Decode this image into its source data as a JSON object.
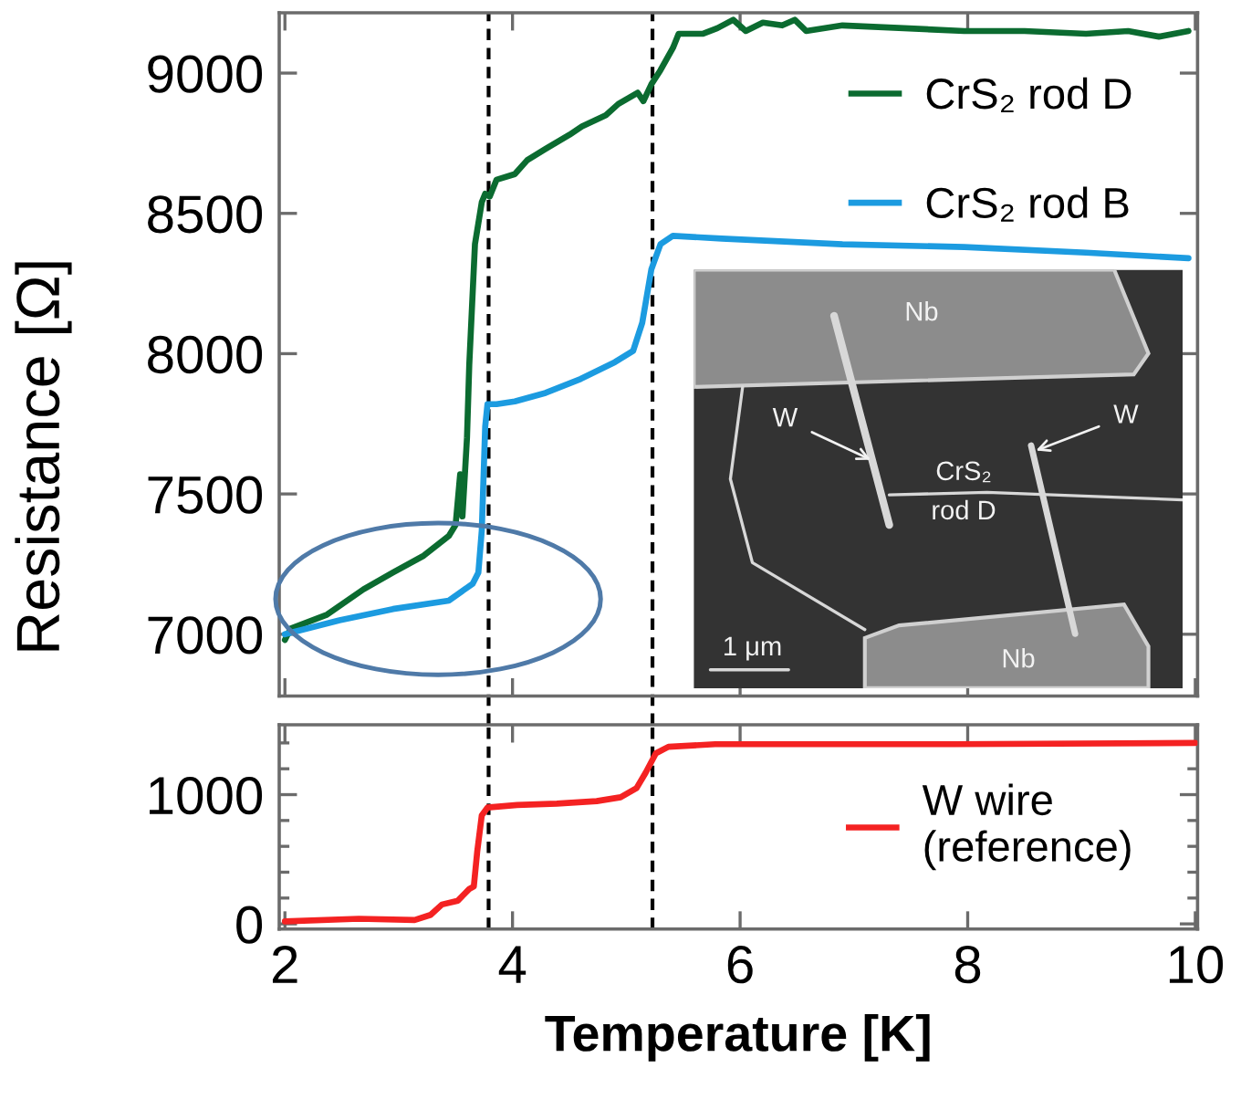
{
  "chart_data": [
    {
      "type": "line",
      "ylabel": "Resistance [Ω]",
      "xlim": [
        1.95,
        10.02
      ],
      "ylim": [
        6780,
        9215
      ],
      "xticks": [
        2,
        4,
        6,
        8,
        10
      ],
      "yticks": [
        7000,
        7500,
        8000,
        8500,
        9000
      ],
      "tick_labels": "y",
      "legend": "top right",
      "ref_lines": [
        {
          "axis": "x",
          "value": 3.79,
          "color": "#000000",
          "line_style": "dashed"
        },
        {
          "axis": "x",
          "value": 5.23,
          "color": "#000000",
          "line_style": "dashed"
        }
      ],
      "series": [
        {
          "name": "CrS₂ rod D",
          "color": "#0b6b30",
          "x": [
            2.0,
            2.05,
            2.37,
            2.69,
            2.95,
            3.22,
            3.44,
            3.5,
            3.54,
            3.56,
            3.6,
            3.62,
            3.67,
            3.73,
            3.76,
            3.8,
            3.86,
            4.02,
            4.13,
            4.29,
            4.5,
            4.61,
            4.82,
            4.93,
            5.1,
            5.15,
            5.22,
            5.3,
            5.41,
            5.46,
            5.67,
            5.8,
            5.94,
            6.05,
            6.2,
            6.37,
            6.48,
            6.58,
            6.9,
            7.44,
            7.97,
            8.5,
            9.04,
            9.41,
            9.68,
            9.94
          ],
          "values": [
            6980,
            7020,
            7070,
            7160,
            7220,
            7280,
            7350,
            7390,
            7570,
            7420,
            7700,
            7960,
            8390,
            8540,
            8570,
            8560,
            8620,
            8640,
            8690,
            8730,
            8780,
            8810,
            8850,
            8890,
            8930,
            8900,
            8960,
            9010,
            9090,
            9140,
            9140,
            9160,
            9190,
            9150,
            9180,
            9170,
            9190,
            9150,
            9170,
            9160,
            9150,
            9150,
            9140,
            9150,
            9130,
            9150
          ]
        },
        {
          "name": "CrS₂ rod B",
          "color": "#1c9be0",
          "x": [
            2.0,
            2.48,
            2.95,
            3.44,
            3.65,
            3.7,
            3.73,
            3.76,
            3.78,
            3.86,
            4.02,
            4.29,
            4.6,
            4.9,
            5.06,
            5.14,
            5.22,
            5.3,
            5.41,
            5.84,
            6.9,
            7.97,
            9.04,
            9.94
          ],
          "values": [
            7000,
            7050,
            7090,
            7120,
            7180,
            7220,
            7370,
            7740,
            7820,
            7820,
            7830,
            7860,
            7910,
            7970,
            8010,
            8110,
            8300,
            8390,
            8420,
            8410,
            8390,
            8380,
            8360,
            8340
          ]
        }
      ],
      "annotations": [
        "Nb",
        "W",
        "CrS₂\nrod D",
        "W",
        "Nb",
        "1 μm"
      ]
    },
    {
      "type": "line",
      "xlabel": "Temperature [K]",
      "xlim": [
        1.95,
        10.02
      ],
      "ylim": [
        -40,
        1540
      ],
      "xticks": [
        2,
        4,
        6,
        8,
        10
      ],
      "yticks": [
        0,
        {
          "value": 200,
          "label": null
        },
        {
          "value": 400,
          "label": null
        },
        {
          "value": 600,
          "label": null
        },
        {
          "value": 800,
          "label": null
        },
        1000,
        {
          "value": 1200,
          "label": null
        },
        {
          "value": 1400,
          "label": null
        }
      ],
      "legend": "right",
      "ref_lines": [
        {
          "axis": "x",
          "value": 3.79,
          "color": "#000000",
          "line_style": "dashed"
        },
        {
          "axis": "x",
          "value": 5.23,
          "color": "#000000",
          "line_style": "dashed"
        }
      ],
      "series": [
        {
          "name": "W wire\n(reference)",
          "color": "#f42222",
          "x": [
            2.0,
            2.65,
            3.14,
            3.28,
            3.38,
            3.52,
            3.62,
            3.66,
            3.69,
            3.73,
            3.78,
            4.04,
            4.39,
            4.74,
            4.95,
            5.09,
            5.17,
            5.26,
            5.37,
            5.78,
            6.48,
            7.87,
            10.0
          ],
          "values": [
            20,
            40,
            30,
            70,
            150,
            180,
            270,
            290,
            560,
            840,
            900,
            920,
            930,
            950,
            980,
            1050,
            1170,
            1320,
            1370,
            1390,
            1390,
            1390,
            1400
          ]
        }
      ]
    }
  ]
}
